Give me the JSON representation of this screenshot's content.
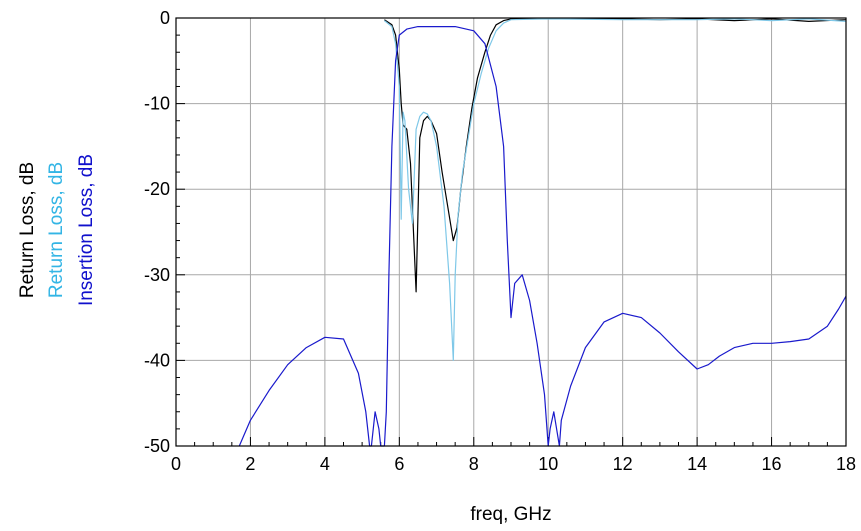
{
  "chart_data": {
    "type": "line",
    "title": "",
    "xlabel": "freq, GHz",
    "ylabels": [
      {
        "text": "Return Loss, dB",
        "color": "#000000"
      },
      {
        "text": "Return Loss, dB",
        "color": "#33B5E5"
      },
      {
        "text": "Insertion Loss, dB",
        "color": "#1010CC"
      }
    ],
    "xlim": [
      0,
      18
    ],
    "ylim": [
      -50,
      0
    ],
    "xticks": [
      "0",
      "2",
      "4",
      "6",
      "8",
      "10",
      "12",
      "14",
      "16",
      "18"
    ],
    "yticks": [
      "0",
      "-10",
      "-20",
      "-30",
      "-40",
      "-50"
    ],
    "grid": true,
    "legend": "none",
    "series": [
      {
        "color": "#000000",
        "x": [
          5.6,
          5.8,
          5.9,
          6.0,
          6.05,
          6.1,
          6.2,
          6.3,
          6.45,
          6.55,
          6.65,
          6.75,
          6.85,
          7.0,
          7.15,
          7.3,
          7.45,
          7.55,
          7.65,
          7.8,
          7.95,
          8.1,
          8.3,
          8.45,
          8.6,
          8.8,
          9.0,
          10.0,
          11.0,
          12.0,
          13.0,
          14.0,
          15.0,
          16.0,
          17.0,
          18.0
        ],
        "y": [
          -0.2,
          -0.8,
          -2.0,
          -6.0,
          -10.0,
          -12.5,
          -13.0,
          -17.0,
          -32.0,
          -14.0,
          -12.0,
          -11.5,
          -12.0,
          -13.5,
          -18.0,
          -22.0,
          -26.0,
          -24.5,
          -20.0,
          -15.0,
          -10.5,
          -7.0,
          -4.0,
          -2.0,
          -0.8,
          -0.3,
          -0.1,
          -0.1,
          -0.1,
          -0.1,
          -0.2,
          -0.1,
          -0.3,
          -0.1,
          -0.4,
          -0.2
        ]
      },
      {
        "color": "#7FC8E8",
        "x": [
          5.6,
          5.8,
          5.9,
          6.0,
          6.05,
          6.1,
          6.15,
          6.25,
          6.35,
          6.45,
          6.55,
          6.65,
          6.75,
          6.85,
          7.0,
          7.2,
          7.35,
          7.45,
          7.5,
          7.58,
          7.7,
          7.85,
          8.0,
          8.2,
          8.4,
          8.6,
          8.8,
          9.0,
          10.0,
          12.0,
          14.0,
          15.0,
          16.0,
          17.0,
          18.0
        ],
        "y": [
          -0.3,
          -1.0,
          -3.0,
          -8.0,
          -23.5,
          -11.0,
          -12.0,
          -20.0,
          -24.0,
          -13.0,
          -11.5,
          -11.0,
          -11.2,
          -12.0,
          -15.0,
          -22.0,
          -31.0,
          -40.0,
          -30.0,
          -23.0,
          -18.0,
          -14.0,
          -10.0,
          -6.5,
          -3.5,
          -1.5,
          -0.6,
          -0.2,
          -0.1,
          -0.2,
          -0.2,
          -0.1,
          -0.3,
          -0.1,
          -0.4
        ]
      },
      {
        "color": "#1A1ACC",
        "x": [
          1.7,
          2.0,
          2.5,
          3.0,
          3.5,
          4.0,
          4.5,
          4.9,
          5.1,
          5.2,
          5.25,
          5.35,
          5.45,
          5.5,
          5.6,
          5.65,
          5.72,
          5.8,
          5.9,
          6.0,
          6.2,
          6.5,
          7.0,
          7.5,
          8.0,
          8.3,
          8.6,
          8.8,
          8.9,
          9.0,
          9.1,
          9.3,
          9.5,
          9.7,
          9.9,
          10.0,
          10.05,
          10.15,
          10.3,
          10.35,
          10.6,
          11.0,
          11.5,
          12.0,
          12.5,
          13.0,
          13.5,
          14.0,
          14.3,
          14.6,
          15.0,
          15.5,
          16.0,
          16.5,
          17.0,
          17.5,
          17.8,
          18.0
        ],
        "y": [
          -50.0,
          -47.0,
          -43.5,
          -40.5,
          -38.5,
          -37.3,
          -37.5,
          -41.5,
          -46.0,
          -50.0,
          -50.0,
          -46.0,
          -48.0,
          -50.0,
          -50.0,
          -46.0,
          -30.0,
          -15.0,
          -5.0,
          -2.0,
          -1.3,
          -1.0,
          -1.0,
          -1.0,
          -1.5,
          -3.0,
          -8.0,
          -15.0,
          -26.0,
          -35.0,
          -31.0,
          -30.0,
          -33.0,
          -38.0,
          -44.0,
          -50.0,
          -48.0,
          -46.0,
          -50.0,
          -47.0,
          -43.0,
          -38.5,
          -35.5,
          -34.5,
          -35.0,
          -36.8,
          -39.0,
          -41.0,
          -40.5,
          -39.5,
          -38.5,
          -38.0,
          -38.0,
          -37.8,
          -37.5,
          -36.0,
          -34.0,
          -32.5
        ]
      }
    ]
  }
}
